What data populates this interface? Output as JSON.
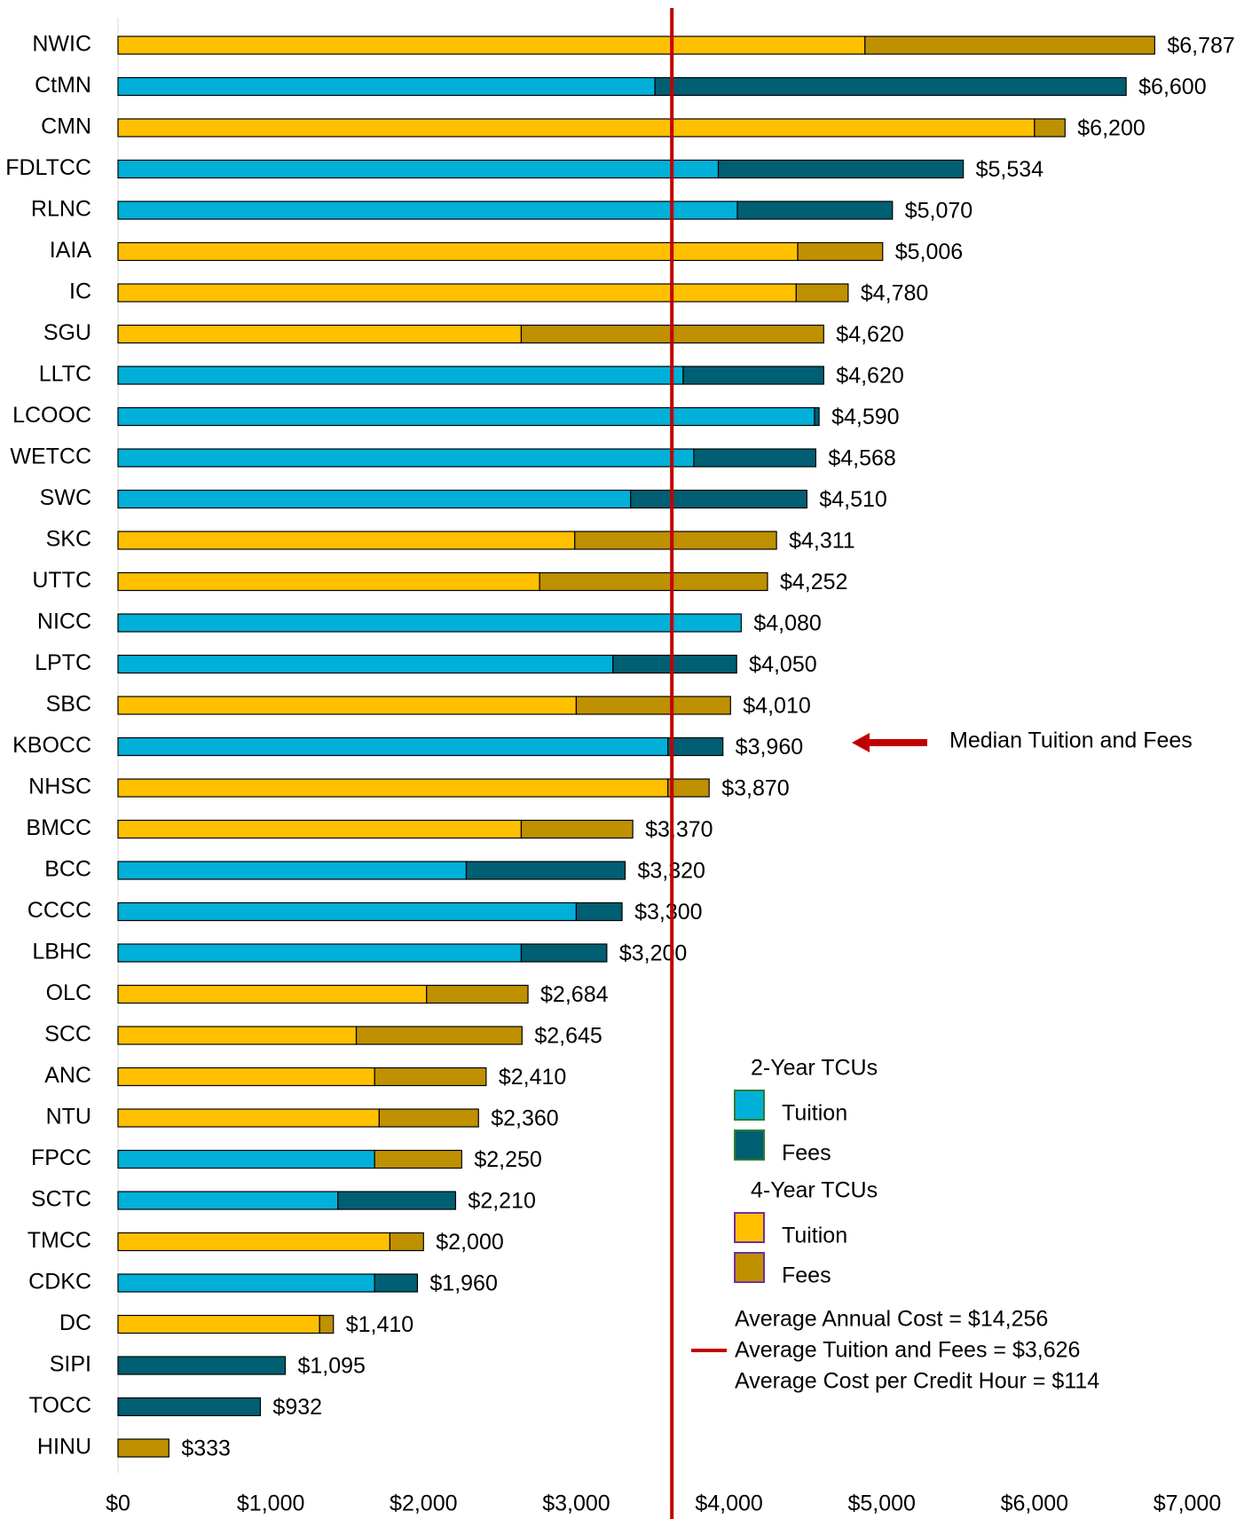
{
  "chart_data": {
    "type": "stacked-bar-horizontal",
    "categories": [
      "NWIC",
      "CtMN",
      "CMN",
      "FDLTCC",
      "RLNC",
      "IAIA",
      "IC",
      "SGU",
      "LLTC",
      "LCOOC",
      "WETCC",
      "SWC",
      "SKC",
      "UTTC",
      "NICC",
      "LPTC",
      "SBC",
      "KBOCC",
      "NHSC",
      "BMCC",
      "BCC",
      "CCCC",
      "LBHC",
      "OLC",
      "SCC",
      "ANC",
      "NTU",
      "FPCC",
      "SCTC",
      "TMCC",
      "CDKC",
      "DC",
      "SIPI",
      "TOCC",
      "HINU"
    ],
    "series": [
      {
        "name": "Tuition",
        "values": [
          4890,
          3515,
          6000,
          3930,
          4055,
          4450,
          4440,
          2640,
          3700,
          4560,
          3770,
          3356,
          2990,
          2760,
          4080,
          3240,
          3000,
          3600,
          3600,
          2640,
          2280,
          3000,
          2640,
          2020,
          1560,
          1680,
          1710,
          1680,
          1440,
          1780,
          1680,
          1320,
          0,
          0,
          0
        ],
        "colors": [
          "#ffc000",
          "#00b0d8",
          "#ffc000",
          "#00b0d8",
          "#00b0d8",
          "#ffc000",
          "#ffc000",
          "#ffc000",
          "#00b0d8",
          "#00b0d8",
          "#00b0d8",
          "#00b0d8",
          "#ffc000",
          "#ffc000",
          "#00b0d8",
          "#00b0d8",
          "#ffc000",
          "#00b0d8",
          "#ffc000",
          "#ffc000",
          "#00b0d8",
          "#00b0d8",
          "#00b0d8",
          "#ffc000",
          "#ffc000",
          "#ffc000",
          "#ffc000",
          "#00b0d8",
          "#00b0d8",
          "#ffc000",
          "#00b0d8",
          "#ffc000",
          "#00b0d8",
          "#00b0d8",
          "#ffc000"
        ]
      },
      {
        "name": "Fees",
        "values": [
          1897,
          3085,
          200,
          1604,
          1015,
          556,
          340,
          1980,
          920,
          30,
          798,
          1154,
          1321,
          1492,
          0,
          810,
          1010,
          360,
          270,
          730,
          1040,
          300,
          560,
          664,
          1085,
          730,
          650,
          570,
          770,
          220,
          280,
          90,
          1095,
          932,
          333
        ],
        "colors": [
          "#bf9000",
          "#005f73",
          "#bf9000",
          "#005f73",
          "#005f73",
          "#bf9000",
          "#bf9000",
          "#bf9000",
          "#005f73",
          "#005f73",
          "#005f73",
          "#005f73",
          "#bf9000",
          "#bf9000",
          "#005f73",
          "#005f73",
          "#bf9000",
          "#005f73",
          "#bf9000",
          "#bf9000",
          "#005f73",
          "#005f73",
          "#005f73",
          "#bf9000",
          "#bf9000",
          "#bf9000",
          "#bf9000",
          "#bf9000",
          "#005f73",
          "#bf9000",
          "#005f73",
          "#bf9000",
          "#005f73",
          "#005f73",
          "#bf9000"
        ]
      }
    ],
    "totals": {
      "values": [
        6787,
        6600,
        6200,
        5534,
        5070,
        5006,
        4780,
        4620,
        4620,
        4590,
        4568,
        4510,
        4311,
        4252,
        4080,
        4050,
        4010,
        3960,
        3870,
        3370,
        3320,
        3300,
        3200,
        2684,
        2645,
        2410,
        2360,
        2250,
        2210,
        2000,
        1960,
        1410,
        1095,
        932,
        333
      ],
      "value_labels": [
        "$6,787",
        "$6,600",
        "$6,200",
        "$5,534",
        "$5,070",
        "$5,006",
        "$4,780",
        "$4,620",
        "$4,620",
        "$4,590",
        "$4,568",
        "$4,510",
        "$4,311",
        "$4,252",
        "$4,080",
        "$4,050",
        "$4,010",
        "$3,960",
        "$3,870",
        "$3,370",
        "$3,320",
        "$3,300",
        "$3,200",
        "$2,684",
        "$2,645",
        "$2,410",
        "$2,360",
        "$2,250",
        "$2,210",
        "$2,000",
        "$1,960",
        "$1,410",
        "$1,095",
        "$932",
        "$333"
      ]
    },
    "xlim": [
      0,
      7000
    ],
    "xticks": [
      {
        "value": 0,
        "label": "$0"
      },
      {
        "value": 1000,
        "label": "$1,000"
      },
      {
        "value": 2000,
        "label": "$2,000"
      },
      {
        "value": 3000,
        "label": "$3,000"
      },
      {
        "value": 4000,
        "label": "$4,000"
      },
      {
        "value": 5000,
        "label": "$5,000"
      },
      {
        "value": 6000,
        "label": "$6,000"
      },
      {
        "value": 7000,
        "label": "$7,000"
      }
    ],
    "reference_line": {
      "value": 3626,
      "color": "#c00000"
    },
    "annotation": "Median Tuition and Fees",
    "legend": {
      "groups": [
        {
          "title": "2-Year TCUs",
          "items": [
            {
              "name": "Tuition",
              "color": "#00b0d8"
            },
            {
              "name": "Fees",
              "color": "#005f73"
            }
          ],
          "border": "#2e7d32"
        },
        {
          "title": "4-Year TCUs",
          "items": [
            {
              "name": "Tuition",
              "color": "#ffc000"
            },
            {
              "name": "Fees",
              "color": "#bf9000"
            }
          ],
          "border": "#7030a0"
        }
      ]
    },
    "stats": [
      "Average Annual Cost = $14,256",
      "Average Tuition and Fees = $3,626",
      "Average Cost per Credit Hour = $114"
    ]
  }
}
